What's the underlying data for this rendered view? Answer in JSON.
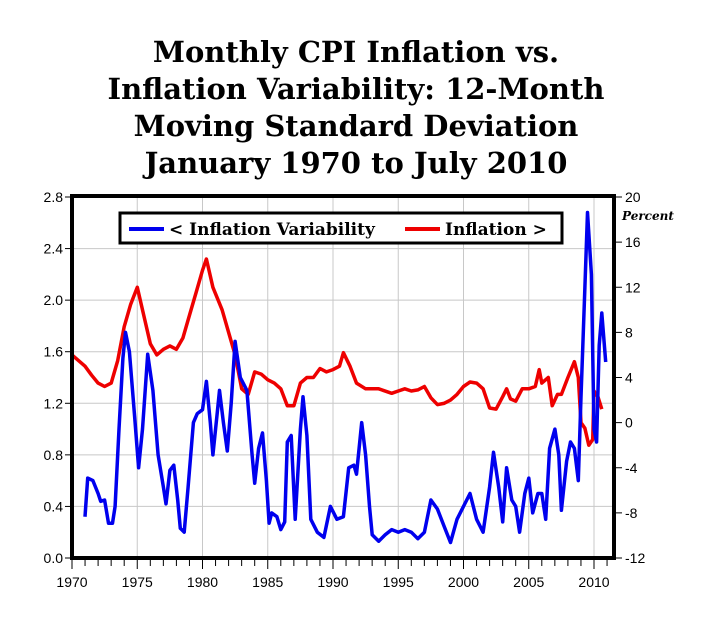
{
  "chart_data": {
    "type": "line",
    "title": [
      "Monthly CPI Inflation vs.",
      "Inflation Variability: 12-Month",
      "Moving Standard Deviation",
      "January 1970 to July 2010"
    ],
    "xlim": [
      1970,
      2011.5
    ],
    "x_ticks": [
      "1970",
      "1975",
      "1980",
      "1985",
      "1990",
      "1995",
      "2000",
      "2005",
      "2010"
    ],
    "y_left": {
      "lim": [
        0,
        2.8
      ],
      "ticks": [
        "0.0",
        "0.4",
        "0.8",
        "1.2",
        "1.6",
        "2.0",
        "2.4",
        "2.8"
      ]
    },
    "y_right": {
      "label": "Percent",
      "lim": [
        -12,
        20
      ],
      "ticks": [
        "-12",
        "-8",
        "-4",
        "0",
        "4",
        "8",
        "12",
        "16",
        "20"
      ]
    },
    "grid": true,
    "legend_placement": "top",
    "series": [
      {
        "name": "< Inflation Variability",
        "axis": "left",
        "color": "#0000ee",
        "x": [
          1971.0,
          1971.2,
          1971.6,
          1972.0,
          1972.2,
          1972.5,
          1972.8,
          1973.1,
          1973.3,
          1973.6,
          1973.9,
          1974.1,
          1974.4,
          1974.8,
          1975.1,
          1975.4,
          1975.8,
          1976.2,
          1976.6,
          1977.0,
          1977.2,
          1977.5,
          1977.8,
          1978.1,
          1978.3,
          1978.6,
          1978.9,
          1979.3,
          1979.6,
          1980.0,
          1980.3,
          1980.6,
          1980.8,
          1981.1,
          1981.3,
          1981.6,
          1981.9,
          1982.2,
          1982.5,
          1982.9,
          1983.4,
          1983.8,
          1984.0,
          1984.3,
          1984.6,
          1984.9,
          1985.1,
          1985.3,
          1985.7,
          1986.0,
          1986.3,
          1986.5,
          1986.8,
          1987.1,
          1987.5,
          1987.7,
          1988.0,
          1988.3,
          1988.8,
          1989.3,
          1989.8,
          1990.3,
          1990.8,
          1991.2,
          1991.6,
          1991.8,
          1992.2,
          1992.5,
          1992.8,
          1993.0,
          1993.5,
          1994.0,
          1994.5,
          1995.0,
          1995.5,
          1996.0,
          1996.5,
          1997.0,
          1997.5,
          1998.0,
          1998.5,
          1999.0,
          1999.5,
          2000.0,
          2000.5,
          2001.0,
          2001.5,
          2002.0,
          2002.3,
          2002.7,
          2003.0,
          2003.3,
          2003.7,
          2004.0,
          2004.3,
          2004.7,
          2005.0,
          2005.3,
          2005.7,
          2006.0,
          2006.3,
          2006.6,
          2007.0,
          2007.3,
          2007.5,
          2007.9,
          2008.2,
          2008.5,
          2008.8,
          2009.0,
          2009.3,
          2009.5,
          2009.8,
          2010.0,
          2010.2,
          2010.4,
          2010.6,
          2010.9
        ],
        "values": [
          0.32,
          0.62,
          0.6,
          0.5,
          0.44,
          0.45,
          0.27,
          0.27,
          0.4,
          1.0,
          1.55,
          1.75,
          1.6,
          1.1,
          0.7,
          1.0,
          1.58,
          1.3,
          0.8,
          0.55,
          0.42,
          0.68,
          0.72,
          0.45,
          0.23,
          0.2,
          0.55,
          1.05,
          1.12,
          1.15,
          1.37,
          1.05,
          0.8,
          1.1,
          1.3,
          1.05,
          0.83,
          1.2,
          1.68,
          1.4,
          1.3,
          0.8,
          0.58,
          0.85,
          0.97,
          0.6,
          0.27,
          0.35,
          0.32,
          0.22,
          0.28,
          0.9,
          0.95,
          0.3,
          1.0,
          1.25,
          0.95,
          0.3,
          0.2,
          0.16,
          0.4,
          0.3,
          0.32,
          0.7,
          0.72,
          0.65,
          1.05,
          0.8,
          0.4,
          0.18,
          0.13,
          0.18,
          0.22,
          0.2,
          0.22,
          0.2,
          0.15,
          0.2,
          0.45,
          0.38,
          0.25,
          0.12,
          0.3,
          0.4,
          0.5,
          0.3,
          0.2,
          0.55,
          0.82,
          0.55,
          0.28,
          0.7,
          0.45,
          0.4,
          0.2,
          0.5,
          0.62,
          0.35,
          0.5,
          0.5,
          0.3,
          0.85,
          1.0,
          0.8,
          0.37,
          0.75,
          0.9,
          0.85,
          0.6,
          1.25,
          2.1,
          2.68,
          2.2,
          1.0,
          0.9,
          1.65,
          1.9,
          1.52
        ]
      },
      {
        "name": "Inflation >",
        "axis": "right",
        "color": "#ee0000",
        "x": [
          1970.0,
          1970.5,
          1971.0,
          1971.5,
          1972.0,
          1972.5,
          1973.0,
          1973.5,
          1974.0,
          1974.5,
          1975.0,
          1975.5,
          1976.0,
          1976.5,
          1977.0,
          1977.5,
          1978.0,
          1978.5,
          1979.0,
          1979.5,
          1980.0,
          1980.3,
          1980.8,
          1981.5,
          1982.0,
          1982.5,
          1983.0,
          1983.5,
          1984.0,
          1984.5,
          1985.0,
          1985.5,
          1986.0,
          1986.5,
          1987.0,
          1987.5,
          1988.0,
          1988.5,
          1989.0,
          1989.5,
          1990.0,
          1990.5,
          1990.8,
          1991.3,
          1991.8,
          1992.5,
          1993.5,
          1994.5,
          1995.0,
          1995.5,
          1996.0,
          1996.5,
          1997.0,
          1997.5,
          1998.0,
          1998.5,
          1999.0,
          1999.5,
          2000.0,
          2000.5,
          2001.0,
          2001.5,
          2002.0,
          2002.5,
          2003.0,
          2003.3,
          2003.6,
          2004.0,
          2004.5,
          2005.0,
          2005.5,
          2005.8,
          2006.0,
          2006.5,
          2006.8,
          2007.2,
          2007.5,
          2008.0,
          2008.5,
          2008.8,
          2009.0,
          2009.3,
          2009.6,
          2009.9,
          2010.0,
          2010.3,
          2010.6
        ],
        "values": [
          6.0,
          5.5,
          5.0,
          4.2,
          3.5,
          3.2,
          3.5,
          5.5,
          8.5,
          10.5,
          12.0,
          9.5,
          7.0,
          6.0,
          6.5,
          6.8,
          6.5,
          7.5,
          9.5,
          11.5,
          13.5,
          14.5,
          12.0,
          10.0,
          8.0,
          6.0,
          3.0,
          2.5,
          4.5,
          4.3,
          3.8,
          3.5,
          3.0,
          1.5,
          1.5,
          3.5,
          4.0,
          4.0,
          4.8,
          4.5,
          4.7,
          5.0,
          6.2,
          5.0,
          3.5,
          3.0,
          3.0,
          2.6,
          2.8,
          3.0,
          2.8,
          2.9,
          3.2,
          2.2,
          1.6,
          1.7,
          2.0,
          2.5,
          3.2,
          3.6,
          3.5,
          3.0,
          1.3,
          1.2,
          2.3,
          3.0,
          2.1,
          1.9,
          3.0,
          3.0,
          3.2,
          4.7,
          3.5,
          4.0,
          1.5,
          2.5,
          2.5,
          4.0,
          5.4,
          4.0,
          0.0,
          -0.5,
          -2.0,
          -1.5,
          2.8,
          2.3,
          1.2
        ]
      }
    ]
  }
}
